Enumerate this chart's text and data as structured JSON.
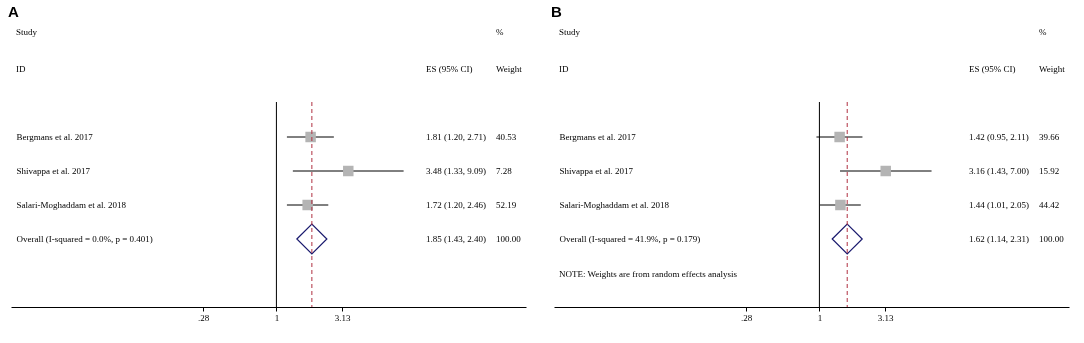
{
  "chart_data": [
    {
      "type": "scatter",
      "orientation": "horizontal",
      "title": "A",
      "log": "x",
      "categories": [
        "Bergmans et al. 2017",
        "Shivappa et al. 2017",
        "Salari-Moghaddam et al. 2018",
        "Overall  (I-squared = 0.0%, p = 0.401)"
      ],
      "series": [
        {
          "marker": "square",
          "color": "#b4b4b4",
          "values": [
            1.81,
            3.48,
            1.72,
            null
          ],
          "errors": [
            [
              1.2,
              2.71
            ],
            [
              1.33,
              9.09
            ],
            [
              1.2,
              2.46
            ],
            null
          ]
        },
        {
          "marker": "diamond",
          "color": "#1a1a6e",
          "values": [
            null,
            null,
            null,
            1.85
          ]
        }
      ],
      "value_labels": [
        "1.81 (1.20, 2.71)",
        "3.48 (1.33, 9.09)",
        "1.72 (1.20, 2.46)",
        "1.85 (1.43, 2.40)"
      ],
      "xlim": [
        0.01,
        76
      ],
      "xticks": [
        {
          "value": 0.28,
          "label": ".28"
        },
        1,
        3.13
      ],
      "ref_lines": [
        {
          "axis": "x",
          "value": 1,
          "color": "#000000",
          "line_style": "solid"
        },
        {
          "axis": "x",
          "value": 1.85,
          "color": "#b03040",
          "line_style": "dashed"
        }
      ],
      "annotations": [
        "Study",
        "ID",
        "ES (95% CI)",
        "%",
        "Weight",
        "40.53",
        "7.28",
        "52.19",
        "100.00"
      ]
    },
    {
      "type": "scatter",
      "orientation": "horizontal",
      "title": "B",
      "log": "x",
      "categories": [
        "Bergmans et al. 2017",
        "Shivappa et al. 2017",
        "Salari-Moghaddam et al. 2018",
        "Overall  (I-squared = 41.9%, p = 0.179)"
      ],
      "series": [
        {
          "marker": "square",
          "color": "#b4b4b4",
          "values": [
            1.42,
            3.16,
            1.44,
            null
          ],
          "errors": [
            [
              0.95,
              2.11
            ],
            [
              1.43,
              7.0
            ],
            [
              1.01,
              2.05
            ],
            null
          ]
        },
        {
          "marker": "diamond",
          "color": "#1a1a6e",
          "values": [
            null,
            null,
            null,
            1.62
          ]
        }
      ],
      "value_labels": [
        "1.42 (0.95, 2.11)",
        "3.16 (1.43, 7.00)",
        "1.44 (1.01, 2.05)",
        "1.62 (1.14, 2.31)"
      ],
      "xlim": [
        0.01,
        76
      ],
      "xticks": [
        {
          "value": 0.28,
          "label": ".28"
        },
        1,
        3.13
      ],
      "ref_lines": [
        {
          "axis": "x",
          "value": 1,
          "color": "#000000",
          "line_style": "solid"
        },
        {
          "axis": "x",
          "value": 1.62,
          "color": "#b03040",
          "line_style": "dashed"
        }
      ],
      "annotations": [
        "Study",
        "ID",
        "ES (95% CI)",
        "%",
        "Weight",
        "39.66",
        "15.92",
        "44.42",
        "100.00",
        "NOTE: Weights are from random effects analysis"
      ]
    }
  ]
}
